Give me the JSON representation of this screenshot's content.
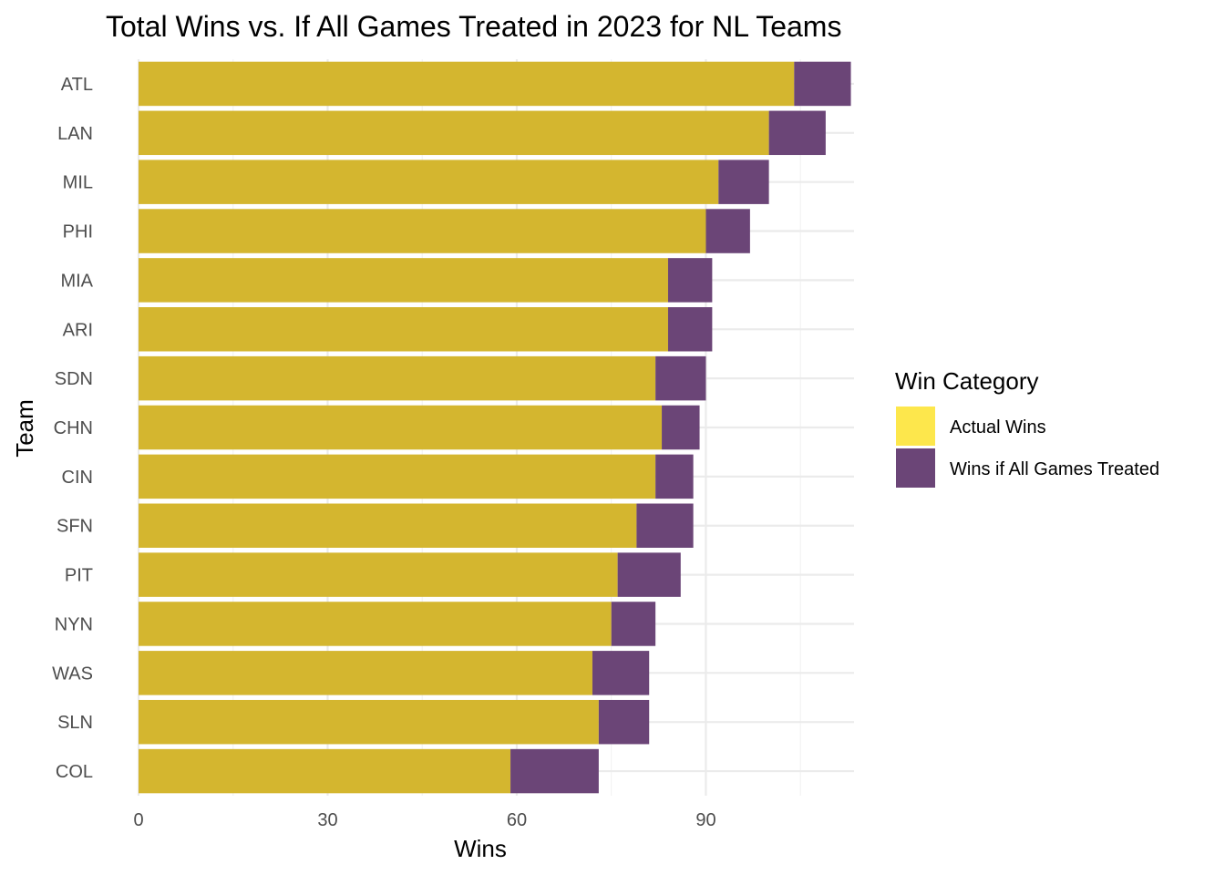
{
  "chart_data": {
    "type": "bar",
    "orientation": "horizontal",
    "stacked": true,
    "title": "Total Wins vs. If All Games Treated in 2023 for NL Teams",
    "xlabel": "Wins",
    "ylabel": "Team",
    "xlim": [
      0,
      113.5
    ],
    "x_ticks": [
      0,
      30,
      60,
      90
    ],
    "grid": true,
    "legend_position": "right",
    "legend_title": "Win Category",
    "categories": [
      "ATL",
      "LAN",
      "MIL",
      "PHI",
      "MIA",
      "ARI",
      "SDN",
      "CHN",
      "CIN",
      "SFN",
      "PIT",
      "NYN",
      "WAS",
      "SLN",
      "COL"
    ],
    "series": [
      {
        "name": "Actual Wins",
        "color": "#d4b62f",
        "legend_color": "#fde74c",
        "values": [
          104,
          100,
          92,
          90,
          84,
          84,
          82,
          83,
          82,
          79,
          76,
          75,
          72,
          73,
          59
        ]
      },
      {
        "name": "Wins if All Games Treated",
        "color": "#6b4577",
        "legend_color": "#6b4577",
        "values": [
          9,
          9,
          8,
          7,
          7,
          7,
          8,
          6,
          6,
          9,
          10,
          7,
          9,
          8,
          14
        ]
      }
    ]
  }
}
